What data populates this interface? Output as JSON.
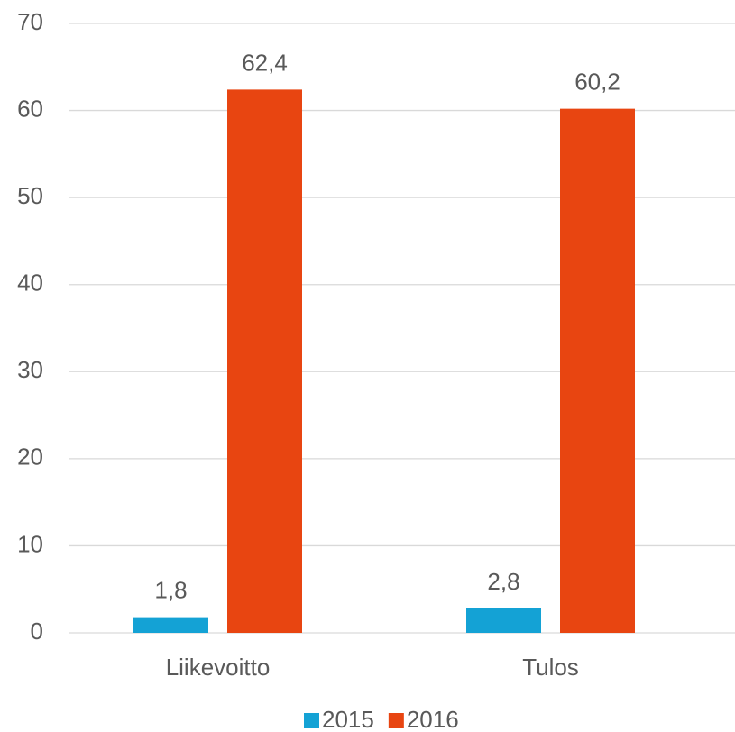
{
  "chart_data": {
    "type": "bar",
    "categories": [
      "Liikevoitto",
      "Tulos"
    ],
    "series": [
      {
        "name": "2015",
        "color": "#14a2d5",
        "values": [
          1.8,
          2.8
        ],
        "value_labels": [
          "1,8",
          "2,8"
        ]
      },
      {
        "name": "2016",
        "color": "#e84511",
        "values": [
          62.4,
          60.2
        ],
        "value_labels": [
          "62,4",
          "60,2"
        ]
      }
    ],
    "ylim": [
      0,
      70
    ],
    "yticks": [
      0,
      10,
      20,
      30,
      40,
      50,
      60,
      70
    ],
    "grid": true,
    "legend": "bottom"
  }
}
